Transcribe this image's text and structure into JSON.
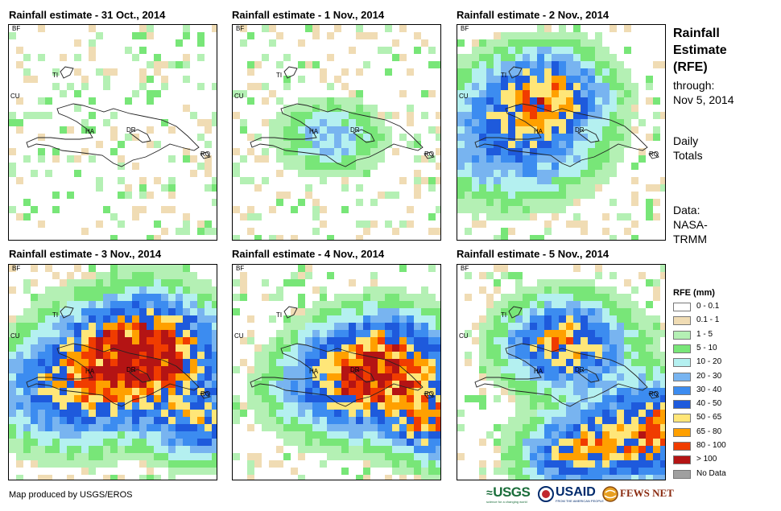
{
  "panels": [
    {
      "title": "Rainfall estimate - 31 Oct., 2014",
      "intensity": 0
    },
    {
      "title": "Rainfall estimate - 1 Nov., 2014",
      "intensity": 1
    },
    {
      "title": "Rainfall estimate - 2 Nov., 2014",
      "intensity": 2
    },
    {
      "title": "Rainfall estimate - 3 Nov., 2014",
      "intensity": 3
    },
    {
      "title": "Rainfall estimate - 4 Nov., 2014",
      "intensity": 4
    },
    {
      "title": "Rainfall estimate - 5 Nov., 2014",
      "intensity": 5
    }
  ],
  "map_labels": {
    "bf": "BF",
    "ti": "TI",
    "cu": "CU",
    "ha": "HA",
    "dr": "DR",
    "rq": "RQ"
  },
  "sidebar": {
    "title_line1": "Rainfall",
    "title_line2": "Estimate",
    "title_line3": "(RFE)",
    "through_label": "through:",
    "through_date": "Nov 5, 2014",
    "daily_line1": "Daily",
    "daily_line2": "Totals",
    "data_line1": "Data:",
    "data_line2": "NASA-",
    "data_line3": "TRMM"
  },
  "legend": {
    "title": "RFE (mm)",
    "items": [
      {
        "label": "0 - 0.1",
        "color": "#ffffff"
      },
      {
        "label": "0.1 - 1",
        "color": "#f0dcb4"
      },
      {
        "label": "1 - 5",
        "color": "#b4f0b4"
      },
      {
        "label": "5 - 10",
        "color": "#78e678"
      },
      {
        "label": "10 - 20",
        "color": "#b4f0f0"
      },
      {
        "label": "20 - 30",
        "color": "#78b4f0"
      },
      {
        "label": "30 - 40",
        "color": "#3c8cf0"
      },
      {
        "label": "40 - 50",
        "color": "#1e5adc"
      },
      {
        "label": "50 - 65",
        "color": "#ffe678"
      },
      {
        "label": "65 - 80",
        "color": "#ffa000"
      },
      {
        "label": "80 - 100",
        "color": "#f03c00"
      },
      {
        "label": "> 100",
        "color": "#b41414"
      },
      {
        "label": "No Data",
        "color": "#a0a0a0"
      }
    ]
  },
  "credit": "Map produced by USGS/EROS",
  "logos": {
    "usgs": "USGS",
    "usgs_tag": "science for a changing world",
    "usaid": "USAID",
    "usaid_tag": "FROM THE AMERICAN PEOPLE",
    "fews": "FEWS NET"
  }
}
